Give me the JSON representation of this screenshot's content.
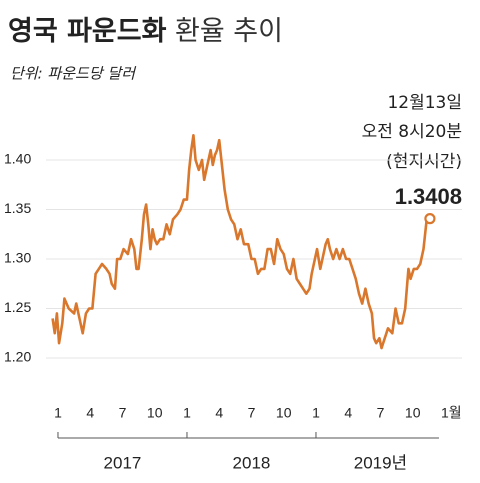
{
  "chart_data": {
    "type": "line",
    "title": {
      "bold": "영국 파운드화",
      "light": "환율 추이"
    },
    "subtitle": "단위: 파운드당 달러",
    "annotations": [
      "12월13일",
      "오전 8시20분",
      "(현지시간)"
    ],
    "color": "#d9772d",
    "grid": true,
    "x": [
      0.0,
      0.2,
      0.4,
      0.6,
      0.9,
      1.1,
      1.5,
      2.0,
      2.2,
      2.5,
      2.8,
      3.1,
      3.4,
      3.7,
      4.0,
      4.3,
      4.6,
      5.0,
      5.3,
      5.5,
      5.8,
      6.0,
      6.3,
      6.6,
      7.0,
      7.3,
      7.6,
      7.8,
      8.0,
      8.3,
      8.5,
      8.7,
      8.9,
      9.1,
      9.3,
      9.5,
      9.7,
      10.0,
      10.3,
      10.6,
      10.9,
      11.2,
      11.6,
      11.9,
      12.2,
      12.5,
      12.7,
      12.9,
      13.1,
      13.3,
      13.6,
      13.9,
      14.1,
      14.4,
      14.7,
      14.9,
      15.1,
      15.3,
      15.5,
      15.7,
      16.0,
      16.3,
      16.6,
      16.9,
      17.2,
      17.5,
      17.8,
      18.2,
      18.5,
      18.8,
      19.1,
      19.4,
      19.7,
      20.0,
      20.3,
      20.6,
      20.9,
      21.2,
      21.5,
      21.8,
      22.1,
      22.4,
      22.7,
      23.0,
      23.3,
      23.6,
      23.9,
      24.1,
      24.4,
      24.6,
      24.9,
      25.1,
      25.4,
      25.6,
      25.8,
      26.1,
      26.4,
      26.7,
      27.0,
      27.3,
      27.6,
      27.9,
      28.2,
      28.5,
      28.8,
      29.1,
      29.4,
      29.7,
      29.9,
      30.1,
      30.4,
      30.6,
      30.9,
      31.2,
      31.6,
      31.9,
      32.2,
      32.5,
      32.8,
      33.1,
      33.3,
      33.6,
      33.9,
      34.2,
      34.5,
      34.8,
      35.1
    ],
    "values": [
      1.24,
      1.225,
      1.245,
      1.215,
      1.235,
      1.26,
      1.25,
      1.245,
      1.255,
      1.24,
      1.225,
      1.245,
      1.25,
      1.25,
      1.285,
      1.29,
      1.295,
      1.29,
      1.285,
      1.275,
      1.27,
      1.3,
      1.3,
      1.31,
      1.305,
      1.32,
      1.31,
      1.29,
      1.29,
      1.32,
      1.345,
      1.355,
      1.335,
      1.31,
      1.33,
      1.32,
      1.315,
      1.32,
      1.32,
      1.335,
      1.325,
      1.34,
      1.345,
      1.35,
      1.36,
      1.36,
      1.39,
      1.41,
      1.425,
      1.4,
      1.39,
      1.4,
      1.38,
      1.395,
      1.41,
      1.395,
      1.405,
      1.41,
      1.42,
      1.4,
      1.37,
      1.35,
      1.34,
      1.335,
      1.32,
      1.33,
      1.315,
      1.315,
      1.3,
      1.3,
      1.285,
      1.29,
      1.29,
      1.31,
      1.31,
      1.295,
      1.32,
      1.31,
      1.305,
      1.29,
      1.285,
      1.3,
      1.28,
      1.275,
      1.27,
      1.265,
      1.27,
      1.285,
      1.3,
      1.31,
      1.29,
      1.3,
      1.315,
      1.32,
      1.31,
      1.3,
      1.31,
      1.3,
      1.31,
      1.3,
      1.3,
      1.29,
      1.28,
      1.265,
      1.255,
      1.27,
      1.255,
      1.245,
      1.22,
      1.215,
      1.22,
      1.21,
      1.22,
      1.23,
      1.225,
      1.25,
      1.235,
      1.235,
      1.25,
      1.29,
      1.28,
      1.29,
      1.29,
      1.295,
      1.31,
      1.34,
      1.3408
    ],
    "xlim": [
      0,
      37
    ],
    "ylim": [
      1.19,
      1.44
    ],
    "xticks": [
      {
        "value": 0.5,
        "label": "1"
      },
      {
        "value": 3.5,
        "label": "4"
      },
      {
        "value": 6.5,
        "label": "7"
      },
      {
        "value": 9.5,
        "label": "10"
      },
      {
        "value": 12.5,
        "label": "1"
      },
      {
        "value": 15.5,
        "label": "4"
      },
      {
        "value": 18.5,
        "label": "7"
      },
      {
        "value": 21.5,
        "label": "10"
      },
      {
        "value": 24.5,
        "label": "1"
      },
      {
        "value": 27.5,
        "label": "4"
      },
      {
        "value": 30.5,
        "label": "7"
      },
      {
        "value": 33.5,
        "label": "10"
      },
      {
        "value": 36.5,
        "label": "1월"
      }
    ],
    "yticks": [
      {
        "value": 1.2,
        "label": "1.20"
      },
      {
        "value": 1.25,
        "label": "1.25"
      },
      {
        "value": 1.3,
        "label": "1.30"
      },
      {
        "value": 1.35,
        "label": "1.35"
      },
      {
        "value": 1.4,
        "label": "1.40"
      }
    ],
    "x_groups": [
      "2017",
      "2018",
      "2019년"
    ]
  }
}
